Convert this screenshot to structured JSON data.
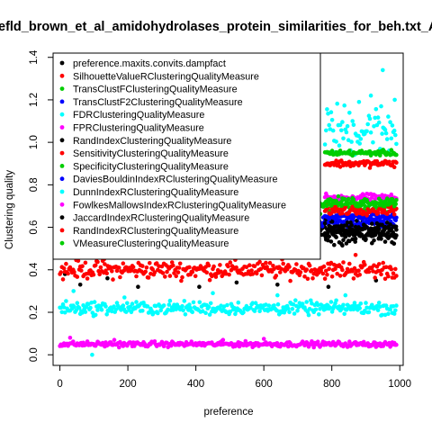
{
  "chart_data": {
    "type": "scatter",
    "title": "efld_brown_et_al_amidohydrolases_protein_similarities_for_beh.txt_A",
    "xlabel": "preference",
    "ylabel": "Clustering quality",
    "xlim": [
      -20,
      1010
    ],
    "ylim": [
      -0.05,
      1.42
    ],
    "xticks": [
      "0",
      "200",
      "400",
      "600",
      "800",
      "1000"
    ],
    "yticks": [
      "0.0",
      "0.2",
      "0.4",
      "0.6",
      "0.8",
      "1.0",
      "1.2",
      "1.4"
    ],
    "legend_position": "top-left",
    "series": [
      {
        "name": "preference.maxits.convits.dampfact",
        "color": "#000000",
        "level": 0.58,
        "spread": 0.02,
        "x_start": 200,
        "outliers": [
          [
            15,
            0.38
          ],
          [
            60,
            0.33
          ],
          [
            140,
            0.36
          ],
          [
            230,
            0.32
          ],
          [
            410,
            0.32
          ],
          [
            520,
            0.34
          ],
          [
            640,
            0.33
          ],
          [
            790,
            0.32
          ],
          [
            930,
            0.35
          ]
        ]
      },
      {
        "name": "SilhouetteValueRClusteringQualityMeasure",
        "color": "#ff0000",
        "level": 0.4,
        "spread": 0.02,
        "x_start": 0,
        "outliers": [
          [
            20,
            0.47
          ],
          [
            130,
            0.45
          ],
          [
            310,
            0.46
          ],
          [
            560,
            0.47
          ],
          [
            700,
            0.46
          ],
          [
            870,
            0.47
          ]
        ]
      },
      {
        "name": "TransClustFClusteringQualityMeasure",
        "color": "#00cd00",
        "level": 0.7,
        "spread": 0.015,
        "x_start": 400,
        "outliers": []
      },
      {
        "name": "TransClustF2ClusteringQualityMeasure",
        "color": "#0000ff",
        "level": 0.62,
        "spread": 0.012,
        "x_start": 400,
        "outliers": []
      },
      {
        "name": "FDRClusteringQualityMeasure",
        "color": "#00ffff",
        "level": 1.06,
        "spread": 0.06,
        "x_start": 780,
        "outliers": [
          [
            950,
            1.34
          ],
          [
            915,
            1.22
          ],
          [
            880,
            1.19
          ],
          [
            985,
            1.2
          ]
        ]
      },
      {
        "name": "FPRClusteringQualityMeasure",
        "color": "#ff00ff",
        "level": 0.05,
        "spread": 0.006,
        "x_start": 0,
        "outliers": [
          [
            30,
            0.08
          ],
          [
            160,
            0.07
          ],
          [
            480,
            0.07
          ],
          [
            600,
            0.075
          ]
        ]
      },
      {
        "name": "RandIndexClusteringQualityMeasure",
        "color": "#000000",
        "level": 0.6,
        "spread": 0.015,
        "x_start": 780,
        "outliers": []
      },
      {
        "name": "SensitivityClusteringQualityMeasure",
        "color": "#ff0000",
        "level": 0.9,
        "spread": 0.008,
        "x_start": 780,
        "outliers": []
      },
      {
        "name": "SpecificityClusteringQualityMeasure",
        "color": "#00cd00",
        "level": 0.95,
        "spread": 0.006,
        "x_start": 780,
        "outliers": []
      },
      {
        "name": "DaviesBouldinIndexRClusteringQualityMeasure",
        "color": "#0000ff",
        "level": 0.65,
        "spread": 0.008,
        "x_start": 780,
        "outliers": []
      },
      {
        "name": "DunnIndexRClusteringQualityMeasure",
        "color": "#00ffff",
        "level": 0.22,
        "spread": 0.015,
        "x_start": 0,
        "outliers": [
          [
            40,
            0.3
          ],
          [
            190,
            0.27
          ],
          [
            450,
            0.29
          ],
          [
            640,
            0.28
          ],
          [
            840,
            0.28
          ],
          [
            95,
            0.0
          ]
        ]
      },
      {
        "name": "FowlkesMallowsIndexRClusteringQualityMeasure",
        "color": "#ff00ff",
        "level": 0.74,
        "spread": 0.008,
        "x_start": 780,
        "outliers": []
      },
      {
        "name": "JaccardIndexRClusteringQualityMeasure",
        "color": "#000000",
        "level": 0.56,
        "spread": 0.02,
        "x_start": 780,
        "outliers": []
      },
      {
        "name": "RandIndexRClusteringQualityMeasure",
        "color": "#ff0000",
        "level": 0.68,
        "spread": 0.01,
        "x_start": 780,
        "outliers": []
      },
      {
        "name": "VMeasureClusteringQualityMeasure",
        "color": "#00cd00",
        "level": 0.72,
        "spread": 0.01,
        "x_start": 780,
        "outliers": []
      }
    ]
  }
}
